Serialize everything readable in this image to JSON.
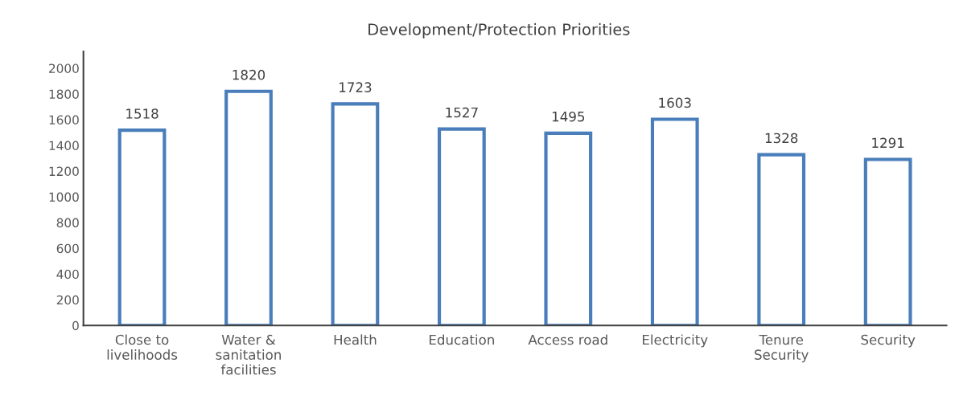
{
  "chart_data": {
    "type": "bar",
    "title": "Development/Protection Priorities",
    "categories": [
      "Close to\nlivelihoods",
      "Water &\nsanitation\nfacilities",
      "Health",
      "Education",
      "Access road",
      "Electricity",
      "Tenure\nSecurity",
      "Security"
    ],
    "values": [
      1518,
      1820,
      1723,
      1527,
      1495,
      1603,
      1328,
      1291
    ],
    "color": "#4a7ebb",
    "ylim": [
      0,
      2130
    ],
    "yticks": [
      0,
      200,
      400,
      600,
      800,
      1000,
      1200,
      1400,
      1600,
      1800,
      2000
    ],
    "grid": false,
    "data_labels": true
  }
}
